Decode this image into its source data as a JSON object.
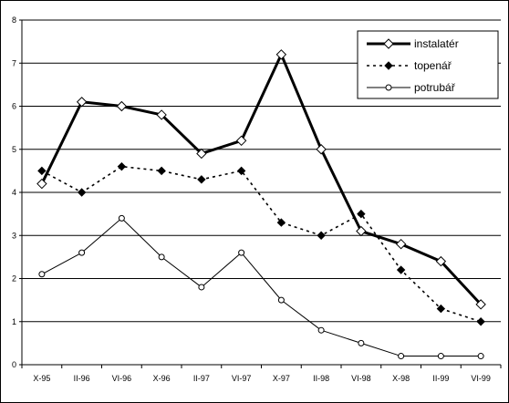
{
  "chart_data": {
    "type": "line",
    "title": "",
    "xlabel": "",
    "ylabel": "",
    "categories": [
      "X-95",
      "II-96",
      "VI-96",
      "X-96",
      "II-97",
      "VI-97",
      "X-97",
      "II-98",
      "VI-98",
      "X-98",
      "II-99",
      "VI-99"
    ],
    "ylim": [
      0,
      8
    ],
    "yticks": [
      "0",
      "1",
      "2",
      "3",
      "4",
      "5",
      "6",
      "7",
      "8"
    ],
    "grid": "horizontal",
    "legend_position": "top-right",
    "series": [
      {
        "name": "instalatér",
        "values": [
          4.2,
          6.1,
          6.0,
          5.8,
          4.9,
          5.2,
          7.2,
          5.0,
          3.1,
          2.8,
          2.4,
          1.4
        ],
        "line_style": "solid-thick",
        "marker": "open-diamond",
        "color": "#000000"
      },
      {
        "name": "topenář",
        "values": [
          4.5,
          4.0,
          4.6,
          4.5,
          4.3,
          4.5,
          3.3,
          3.0,
          3.5,
          2.2,
          1.3,
          1.0
        ],
        "line_style": "dotted",
        "marker": "filled-diamond",
        "color": "#000000"
      },
      {
        "name": "potrubář",
        "values": [
          2.1,
          2.6,
          3.4,
          2.5,
          1.8,
          2.6,
          1.5,
          0.8,
          0.5,
          0.2,
          0.2,
          0.2
        ],
        "line_style": "solid-thin",
        "marker": "open-circle",
        "color": "#000000"
      }
    ]
  }
}
